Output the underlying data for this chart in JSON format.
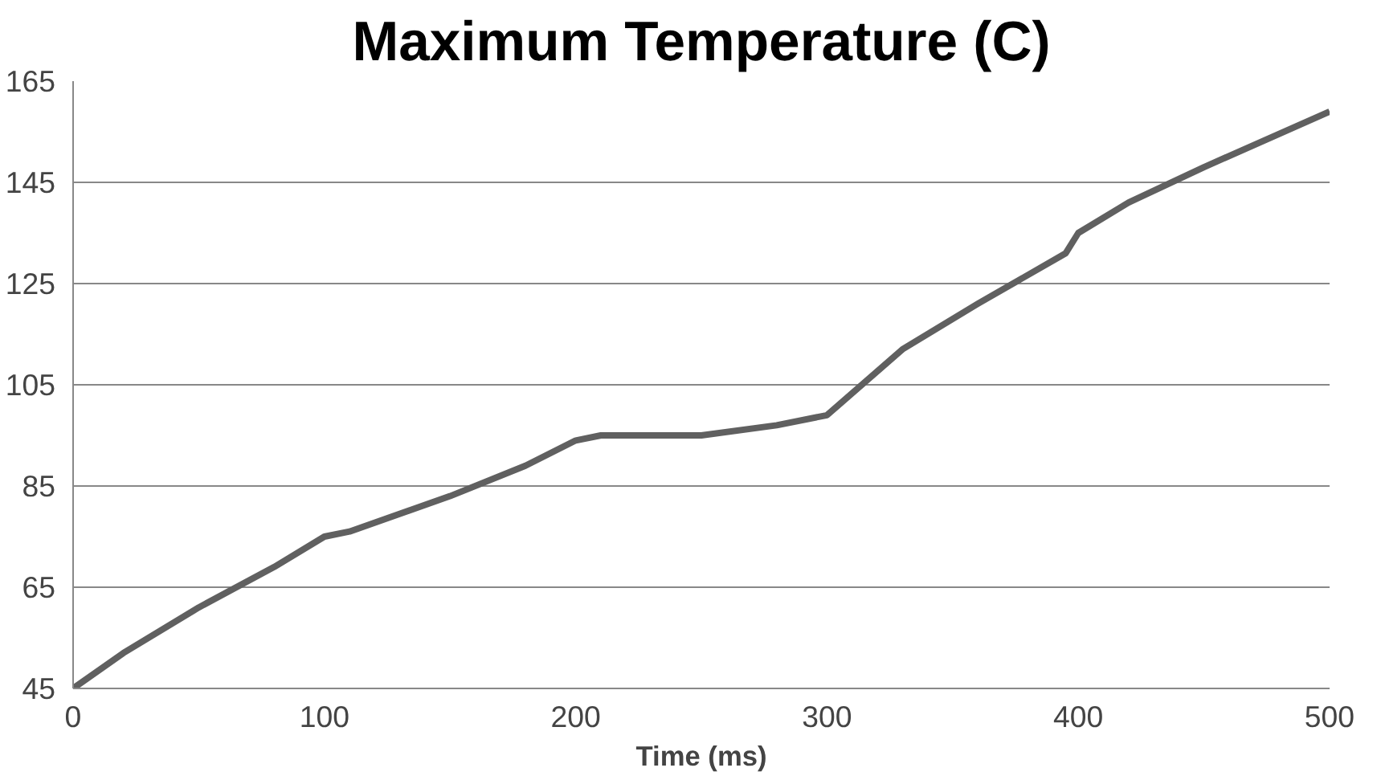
{
  "chart_data": {
    "type": "line",
    "title": "Maximum Temperature (C)",
    "xlabel": "Time (ms)",
    "x": [
      0,
      20,
      50,
      80,
      100,
      110,
      150,
      180,
      200,
      210,
      250,
      280,
      300,
      330,
      360,
      395,
      400,
      420,
      450,
      500
    ],
    "series": [
      {
        "color": "#606060",
        "values": [
          45,
          52,
          61,
          69,
          75,
          76,
          83,
          89,
          94,
          95,
          95,
          97,
          99,
          112,
          121,
          131,
          135,
          141,
          148,
          159
        ]
      }
    ],
    "xlim": [
      0,
      500
    ],
    "xticks": [
      0,
      100,
      200,
      300,
      400,
      500
    ],
    "ylim": [
      45,
      165
    ],
    "yticks": [
      45,
      65,
      85,
      105,
      125,
      145,
      165
    ],
    "grid": "y",
    "marker": "none",
    "line_style": "solid"
  }
}
